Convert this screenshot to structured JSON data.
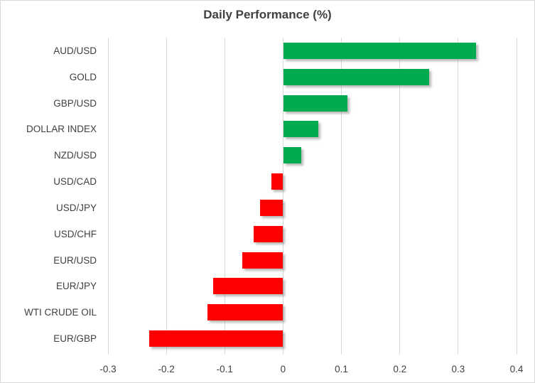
{
  "chart_data": {
    "type": "bar",
    "orientation": "horizontal",
    "title": "Daily Performance (%)",
    "categories": [
      "AUD/USD",
      "GOLD",
      "GBP/USD",
      "DOLLAR INDEX",
      "NZD/USD",
      "USD/CAD",
      "USD/JPY",
      "USD/CHF",
      "EUR/USD",
      "EUR/JPY",
      "WTI CRUDE OIL",
      "EUR/GBP"
    ],
    "values": [
      0.33,
      0.25,
      0.11,
      0.06,
      0.03,
      -0.02,
      -0.04,
      -0.05,
      -0.07,
      -0.12,
      -0.13,
      -0.23
    ],
    "xlabel": "",
    "ylabel": "",
    "xlim": [
      -0.3,
      0.4
    ],
    "x_tick_labels": [
      "-0.3",
      "-0.2",
      "-0.1",
      "0",
      "0.1",
      "0.2",
      "0.3",
      "0.4"
    ],
    "x_tick_values": [
      -0.3,
      -0.2,
      -0.1,
      0,
      0.1,
      0.2,
      0.3,
      0.4
    ],
    "grid": "vertical",
    "legend": "none",
    "positive_color": "#00AB50",
    "negative_color": "#FF0000",
    "gridline_color": "#D9D9D9",
    "text_color": "#404040"
  }
}
